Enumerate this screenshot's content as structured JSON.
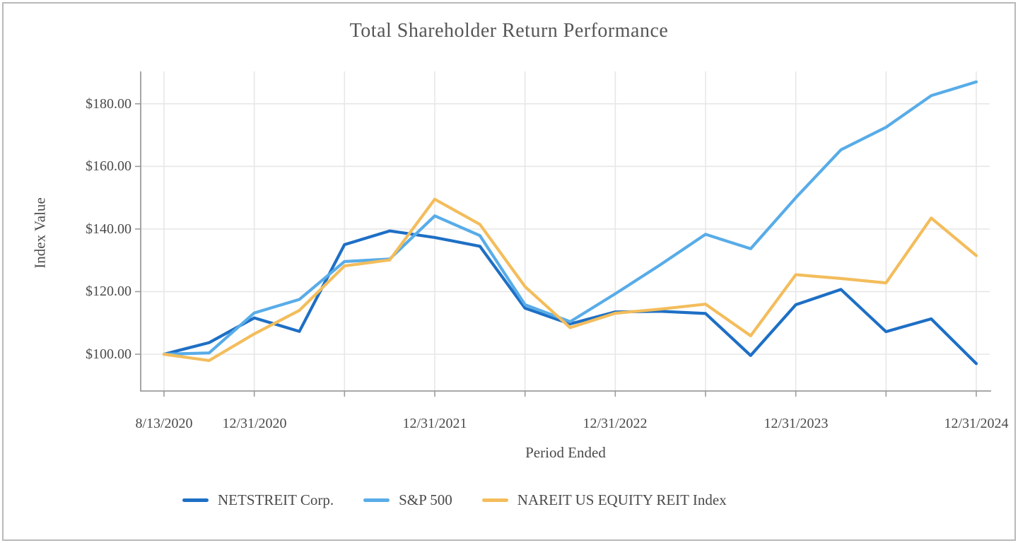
{
  "chart_data": {
    "type": "line",
    "title": "Total Shareholder Return Performance",
    "xlabel": "Period Ended",
    "ylabel": "Index Value",
    "y_tick_labels": [
      "$180.00",
      "$160.00",
      "$140.00",
      "$120.00",
      "$100.00"
    ],
    "y_tick_values": [
      180,
      160,
      140,
      120,
      100
    ],
    "ylim": [
      88,
      192
    ],
    "x_tick_labels": [
      "8/13/2020",
      "12/31/2020",
      "12/31/2021",
      "12/31/2022",
      "12/31/2023",
      "12/31/2024"
    ],
    "x_labeled_tick_indices": [
      0,
      2,
      6,
      10,
      14,
      18
    ],
    "x_minor_tick_indices": [
      0,
      2,
      4,
      6,
      8,
      10,
      12,
      14,
      16,
      18
    ],
    "x_periods": [
      "8/13/2020",
      "9/30/2020",
      "12/31/2020",
      "3/31/2021",
      "6/30/2021",
      "9/30/2021",
      "12/31/2021",
      "3/31/2022",
      "6/30/2022",
      "9/30/2022",
      "12/31/2022",
      "3/31/2023",
      "6/30/2023",
      "9/30/2023",
      "12/31/2023",
      "3/31/2024",
      "6/30/2024",
      "9/30/2024",
      "12/31/2024"
    ],
    "grid": true,
    "legend_position": "bottom",
    "series": [
      {
        "name": "NETSTREIT Corp.",
        "color": "#1e6fc5",
        "values": [
          100.0,
          103.7,
          111.6,
          107.3,
          135.0,
          139.4,
          137.3,
          134.5,
          114.7,
          109.7,
          113.5,
          113.7,
          113.0,
          99.6,
          115.8,
          120.7,
          107.2,
          111.3,
          97.0
        ]
      },
      {
        "name": "S&P 500",
        "color": "#58ace8",
        "values": [
          100.0,
          100.4,
          113.2,
          117.5,
          129.6,
          130.4,
          144.2,
          137.9,
          115.8,
          110.4,
          119.3,
          128.6,
          138.3,
          133.7,
          150.0,
          165.3,
          172.5,
          182.6,
          187.0
        ]
      },
      {
        "name": "NAREIT US EQUITY REIT Index",
        "color": "#f3bd5c",
        "values": [
          100.0,
          98.0,
          106.5,
          114.0,
          128.2,
          130.1,
          149.5,
          141.5,
          121.6,
          108.5,
          113.1,
          114.4,
          116.0,
          105.9,
          125.4,
          124.2,
          122.8,
          143.5,
          131.5
        ]
      }
    ],
    "axis_color": "#9c9c9c",
    "gridline_color": "#e7e7e7"
  }
}
